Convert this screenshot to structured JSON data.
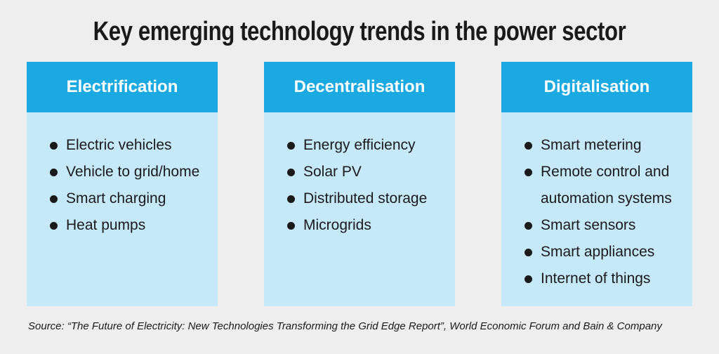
{
  "title": "Key emerging technology trends in the power sector",
  "columns": [
    {
      "heading": "Electrification",
      "items": [
        "Electric vehicles",
        "Vehicle to grid/home",
        "Smart charging",
        "Heat pumps"
      ]
    },
    {
      "heading": "Decentralisation",
      "items": [
        "Energy efficiency",
        "Solar PV",
        "Distributed storage",
        "Microgrids"
      ]
    },
    {
      "heading": "Digitalisation",
      "items": [
        "Smart metering",
        "Remote control and automation systems",
        "Smart sensors",
        "Smart appliances",
        "Internet of things"
      ]
    }
  ],
  "source": "Source: “The Future of Electricity: New Technologies Transforming the Grid Edge Report”, World Economic Forum and Bain & Company"
}
